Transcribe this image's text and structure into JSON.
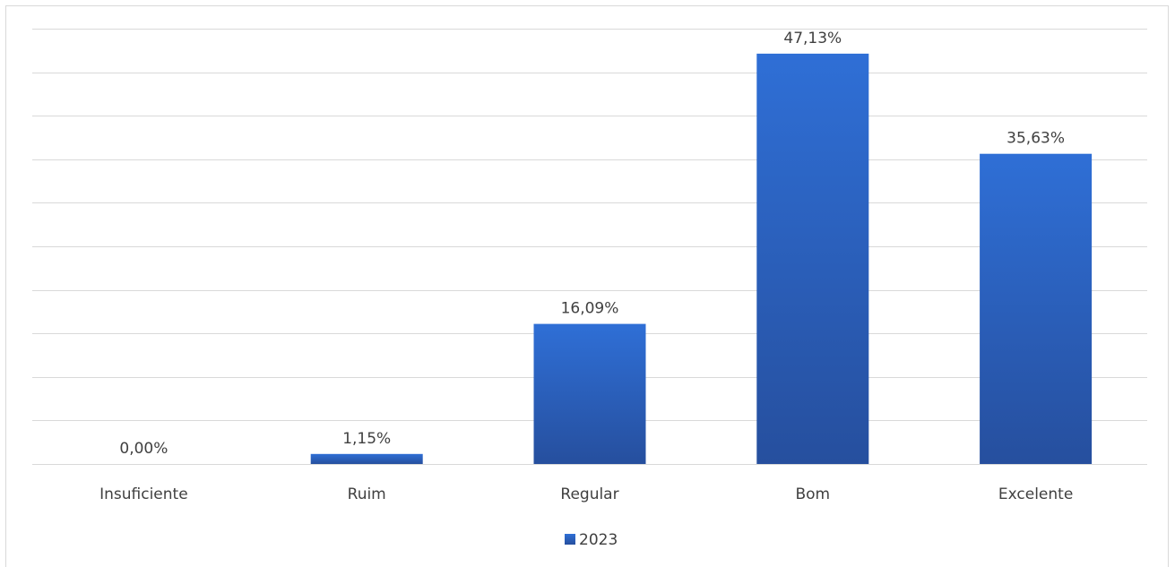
{
  "chart_data": {
    "type": "bar",
    "categories": [
      "Insuficiente",
      "Ruim",
      "Regular",
      "Bom",
      "Excelente"
    ],
    "series": [
      {
        "name": "2023",
        "values": [
          0.0,
          1.15,
          16.09,
          47.13,
          35.63
        ],
        "data_labels": [
          "0,00%",
          "1,15%",
          "16,09%",
          "47,13%",
          "35,63%"
        ]
      }
    ],
    "ylim": [
      0,
      50
    ],
    "y_tick_step": 5,
    "grid": true,
    "legend_position": "bottom",
    "bar_color_top": "#2f6fd6",
    "bar_color_bottom": "#264f9e",
    "gridline_color": "#d9d9d9"
  }
}
